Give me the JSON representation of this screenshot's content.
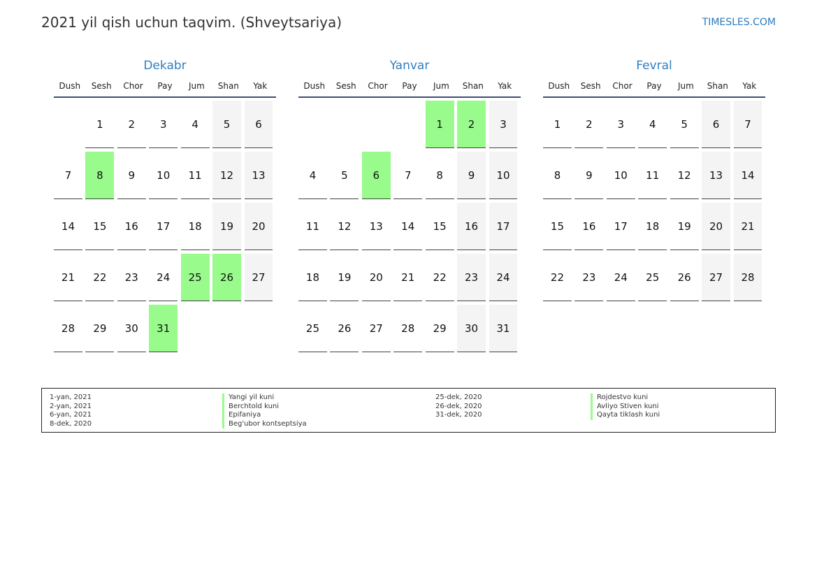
{
  "title": "2021 yil qish uchun taqvim. (Shveytsariya)",
  "brand": "TIMESLES.COM",
  "colors": {
    "holiday": "#98fb8c",
    "weekend": "#f4f4f4",
    "accent": "#2f7fc0"
  },
  "weekdays": [
    "Dush",
    "Sesh",
    "Chor",
    "Pay",
    "Jum",
    "Shan",
    "Yak"
  ],
  "months": [
    {
      "name": "Dekabr",
      "weeks": [
        [
          null,
          1,
          2,
          3,
          4,
          5,
          6
        ],
        [
          7,
          8,
          9,
          10,
          11,
          12,
          13
        ],
        [
          14,
          15,
          16,
          17,
          18,
          19,
          20
        ],
        [
          21,
          22,
          23,
          24,
          25,
          26,
          27
        ],
        [
          28,
          29,
          30,
          31,
          null,
          null,
          null
        ]
      ],
      "holidays": [
        8,
        25,
        26,
        31
      ]
    },
    {
      "name": "Yanvar",
      "weeks": [
        [
          null,
          null,
          null,
          null,
          1,
          2,
          3
        ],
        [
          4,
          5,
          6,
          7,
          8,
          9,
          10
        ],
        [
          11,
          12,
          13,
          14,
          15,
          16,
          17
        ],
        [
          18,
          19,
          20,
          21,
          22,
          23,
          24
        ],
        [
          25,
          26,
          27,
          28,
          29,
          30,
          31
        ]
      ],
      "holidays": [
        1,
        2,
        6
      ]
    },
    {
      "name": "Fevral",
      "weeks": [
        [
          1,
          2,
          3,
          4,
          5,
          6,
          7
        ],
        [
          8,
          9,
          10,
          11,
          12,
          13,
          14
        ],
        [
          15,
          16,
          17,
          18,
          19,
          20,
          21
        ],
        [
          22,
          23,
          24,
          25,
          26,
          27,
          28
        ]
      ],
      "holidays": []
    }
  ],
  "legend": [
    [
      {
        "date": "1-yan, 2021",
        "name": "Yangi yil kuni"
      },
      {
        "date": "2-yan, 2021",
        "name": "Berchtold kuni"
      },
      {
        "date": "6-yan, 2021",
        "name": "Epifaniya"
      },
      {
        "date": "8-dek, 2020",
        "name": "Beg'ubor kontseptsiya"
      }
    ],
    [
      {
        "date": "25-dek, 2020",
        "name": "Rojdestvo kuni"
      },
      {
        "date": "26-dek, 2020",
        "name": "Avliyo Stiven kuni"
      },
      {
        "date": "31-dek, 2020",
        "name": "Qayta tiklash kuni"
      }
    ]
  ]
}
